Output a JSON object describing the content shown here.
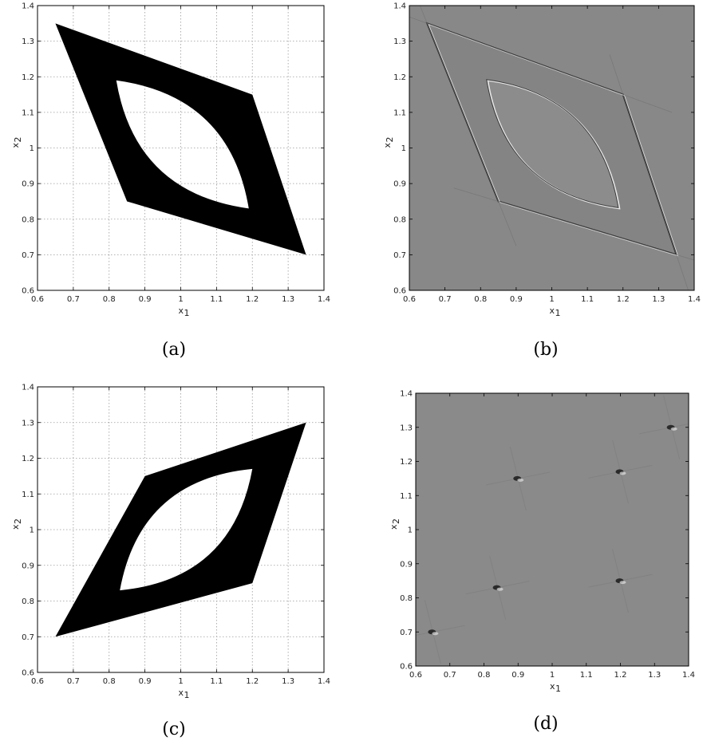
{
  "chart_data": [
    {
      "id": "a",
      "type": "area",
      "caption": "(a)",
      "xlabel": "x",
      "xlabel_sub": "1",
      "ylabel": "x",
      "ylabel_sub": "2",
      "xlim": [
        0.6,
        1.4
      ],
      "ylim": [
        0.6,
        1.4
      ],
      "xticks": [
        0.6,
        0.7,
        0.8,
        0.9,
        1,
        1.1,
        1.2,
        1.3,
        1.4
      ],
      "yticks": [
        0.6,
        0.7,
        0.8,
        0.9,
        1,
        1.1,
        1.2,
        1.3,
        1.4
      ],
      "grid": true,
      "style": "binary",
      "fill_color": "#000000",
      "outer": [
        [
          0.65,
          1.35
        ],
        [
          1.2,
          1.15
        ],
        [
          1.35,
          0.7
        ],
        [
          0.85,
          0.85
        ]
      ],
      "hole": {
        "p1": [
          0.82,
          1.19
        ],
        "p2": [
          1.19,
          0.83
        ],
        "bulge": 0.095
      }
    },
    {
      "id": "b",
      "type": "heatmap",
      "caption": "(b)",
      "xlabel": "x",
      "xlabel_sub": "1",
      "ylabel": "x",
      "ylabel_sub": "2",
      "xlim": [
        0.6,
        1.4
      ],
      "ylim": [
        0.6,
        1.4
      ],
      "xticks": [
        0.6,
        0.7,
        0.8,
        0.9,
        1,
        1.1,
        1.2,
        1.3,
        1.4
      ],
      "yticks": [
        0.6,
        0.7,
        0.8,
        0.9,
        1,
        1.1,
        1.2,
        1.3,
        1.4
      ],
      "grid": false,
      "style": "edges",
      "background_color": "#888888",
      "outer": [
        [
          0.65,
          1.35
        ],
        [
          1.2,
          1.15
        ],
        [
          1.35,
          0.7
        ],
        [
          0.85,
          0.85
        ]
      ],
      "hole": {
        "p1": [
          0.82,
          1.19
        ],
        "p2": [
          1.19,
          0.83
        ],
        "bulge": 0.095
      }
    },
    {
      "id": "c",
      "type": "area",
      "caption": "(c)",
      "xlabel": "x",
      "xlabel_sub": "1",
      "ylabel": "x",
      "ylabel_sub": "2",
      "xlim": [
        0.6,
        1.4
      ],
      "ylim": [
        0.6,
        1.4
      ],
      "xticks": [
        0.6,
        0.7,
        0.8,
        0.9,
        1,
        1.1,
        1.2,
        1.3,
        1.4
      ],
      "yticks": [
        0.6,
        0.7,
        0.8,
        0.9,
        1,
        1.1,
        1.2,
        1.3,
        1.4
      ],
      "grid": true,
      "style": "binary",
      "fill_color": "#000000",
      "outer": [
        [
          0.65,
          0.7
        ],
        [
          0.9,
          1.15
        ],
        [
          1.35,
          1.3
        ],
        [
          1.2,
          0.85
        ]
      ],
      "hole": {
        "p1": [
          0.83,
          0.83
        ],
        "p2": [
          1.2,
          1.17
        ],
        "bulge": 0.095
      }
    },
    {
      "id": "d",
      "type": "heatmap",
      "caption": "(d)",
      "xlabel": "x",
      "xlabel_sub": "1",
      "ylabel": "x",
      "ylabel_sub": "2",
      "xlim": [
        0.6,
        1.4
      ],
      "ylim": [
        0.6,
        1.4
      ],
      "xticks": [
        0.6,
        0.7,
        0.8,
        0.9,
        1,
        1.1,
        1.2,
        1.3,
        1.4
      ],
      "yticks": [
        0.6,
        0.7,
        0.8,
        0.9,
        1,
        1.1,
        1.2,
        1.3,
        1.4
      ],
      "grid": false,
      "style": "points",
      "background_color": "#8a8a8a",
      "points": [
        [
          0.65,
          0.7
        ],
        [
          0.84,
          0.83
        ],
        [
          0.9,
          1.15
        ],
        [
          1.2,
          0.85
        ],
        [
          1.2,
          1.17
        ],
        [
          1.35,
          1.3
        ]
      ]
    }
  ]
}
